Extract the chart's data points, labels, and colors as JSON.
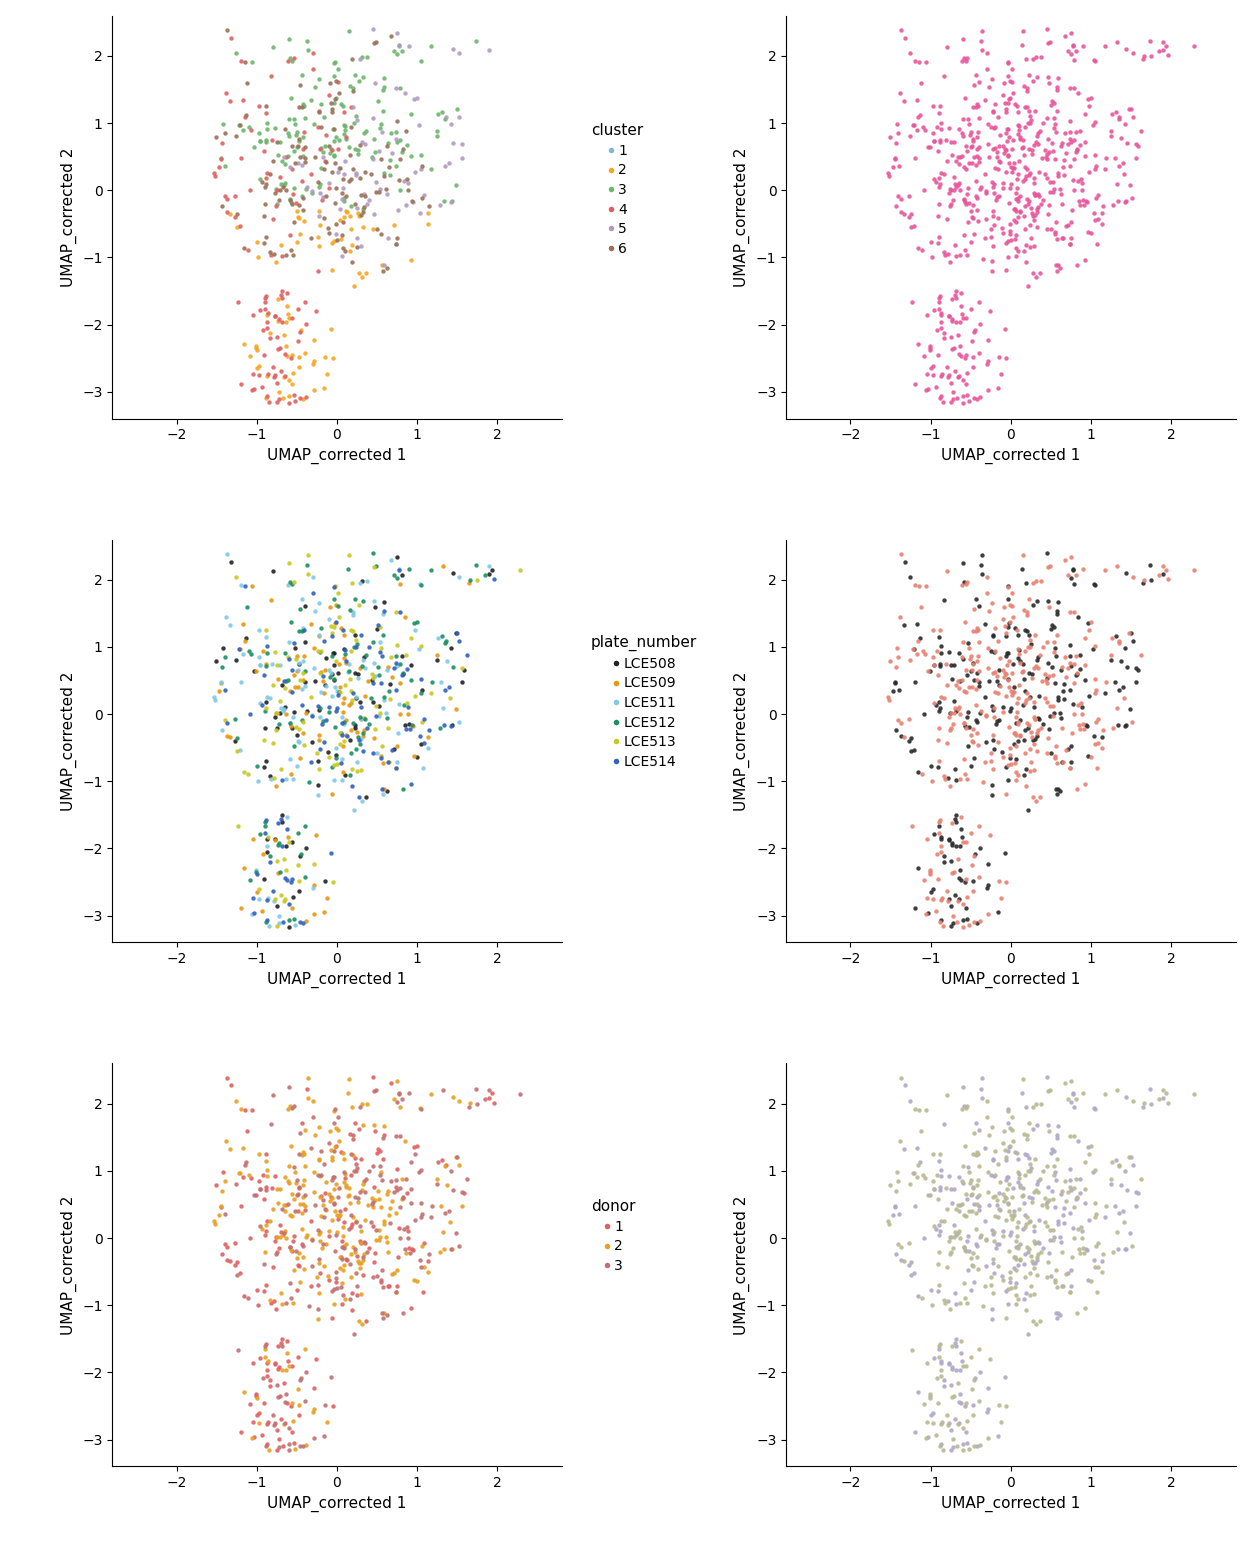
{
  "xlim": [
    -2.8,
    2.8
  ],
  "ylim": [
    -3.4,
    2.6
  ],
  "xlabel": "UMAP_corrected 1",
  "ylabel": "UMAP_corrected 2",
  "xticks": [
    -2,
    -1,
    0,
    1,
    2
  ],
  "yticks": [
    -3,
    -2,
    -1,
    0,
    1,
    2
  ],
  "cluster_colors": {
    "1": "#7EB8D4",
    "2": "#F5A623",
    "3": "#6DB56D",
    "4": "#E06060",
    "5": "#B09AC0",
    "6": "#9B7057"
  },
  "stage_color": "#E8559A",
  "plate_colors": {
    "LCE508": "#222222",
    "LCE509": "#E8960C",
    "LCE511": "#7EC8E8",
    "LCE512": "#1A9060",
    "LCE513": "#C8C820",
    "LCE514": "#3060C0"
  },
  "tissue_colors": {
    "Blood": "#2a2a2a",
    "Thymus": "#E88070"
  },
  "donor_colors": {
    "1": "#E06060",
    "2": "#E8A020",
    "3": "#C07070"
  },
  "group_colors": {
    "Blood.S3 (CD4-/CD161+)": "#B0A8C8",
    "Thymus.S3 (CD4-/CD161+)": "#B8B890"
  },
  "point_size": 10,
  "alpha": 0.9,
  "figsize": [
    12.48,
    15.6
  ],
  "dpi": 100,
  "seed": 42,
  "n_points": 650,
  "font_size": 11,
  "legend_title_size": 11,
  "tick_size": 10
}
